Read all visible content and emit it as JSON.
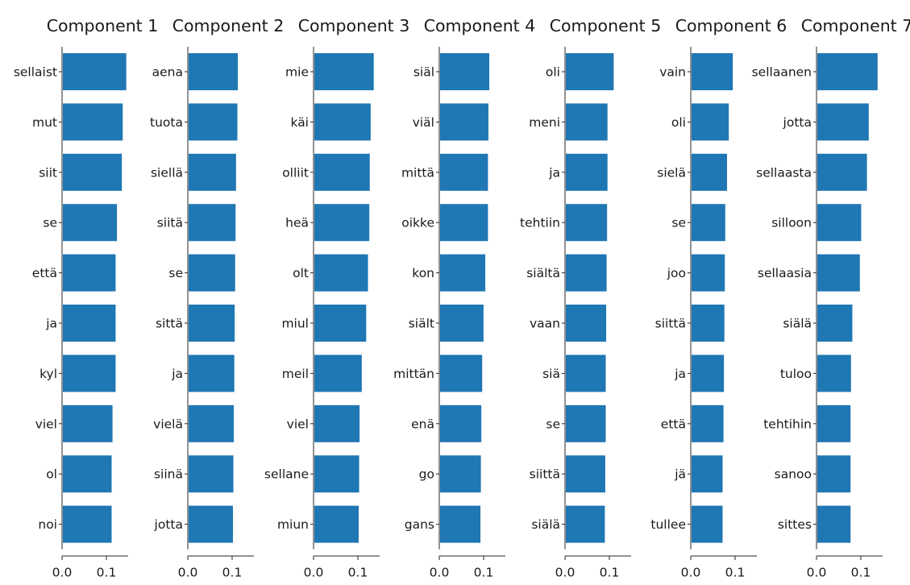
{
  "chart_data": [
    {
      "type": "bar",
      "orientation": "horizontal",
      "title": "Component 1",
      "categories": [
        "sellaist",
        "mut",
        "siit",
        "se",
        "että",
        "ja",
        "kyl",
        "viel",
        "ol",
        "noi"
      ],
      "values": [
        0.143,
        0.135,
        0.133,
        0.122,
        0.119,
        0.119,
        0.119,
        0.112,
        0.11,
        0.11
      ],
      "xlim": [
        0,
        0.15
      ],
      "xticks": [
        "0.0",
        "0.1"
      ],
      "grid": false
    },
    {
      "type": "bar",
      "orientation": "horizontal",
      "title": "Component 2",
      "categories": [
        "aena",
        "tuota",
        "siellä",
        "siitä",
        "se",
        "sittä",
        "ja",
        "vielä",
        "siinä",
        "jotta"
      ],
      "values": [
        0.111,
        0.11,
        0.107,
        0.106,
        0.105,
        0.104,
        0.103,
        0.102,
        0.101,
        0.1
      ],
      "xlim": [
        0,
        0.15
      ],
      "xticks": [
        "0.0",
        "0.1"
      ],
      "grid": false
    },
    {
      "type": "bar",
      "orientation": "horizontal",
      "title": "Component 3",
      "categories": [
        "mie",
        "käi",
        "olliit",
        "heä",
        "olt",
        "miul",
        "meil",
        "viel",
        "sellane",
        "miun"
      ],
      "values": [
        0.134,
        0.127,
        0.125,
        0.124,
        0.121,
        0.117,
        0.107,
        0.102,
        0.101,
        0.1
      ],
      "xlim": [
        0,
        0.15
      ],
      "xticks": [
        "0.0",
        "0.1"
      ],
      "grid": false
    },
    {
      "type": "bar",
      "orientation": "horizontal",
      "title": "Component 4",
      "categories": [
        "siäl",
        "viäl",
        "mittä",
        "oikke",
        "kon",
        "siält",
        "mittän",
        "enä",
        "go",
        "gans"
      ],
      "values": [
        0.111,
        0.109,
        0.108,
        0.108,
        0.102,
        0.098,
        0.095,
        0.093,
        0.092,
        0.091
      ],
      "xlim": [
        0,
        0.15
      ],
      "xticks": [
        "0.0",
        "0.1"
      ],
      "grid": false
    },
    {
      "type": "bar",
      "orientation": "horizontal",
      "title": "Component 5",
      "categories": [
        "oli",
        "meni",
        "ja",
        "tehtiin",
        "siältä",
        "vaan",
        "siä",
        "se",
        "siittä",
        "siälä"
      ],
      "values": [
        0.108,
        0.094,
        0.094,
        0.093,
        0.092,
        0.091,
        0.09,
        0.09,
        0.089,
        0.088
      ],
      "xlim": [
        0,
        0.15
      ],
      "xticks": [
        "0.0",
        "0.1"
      ],
      "grid": false
    },
    {
      "type": "bar",
      "orientation": "horizontal",
      "title": "Component 6",
      "categories": [
        "vain",
        "oli",
        "sielä",
        "se",
        "joo",
        "siittä",
        "ja",
        "että",
        "jä",
        "tullee"
      ],
      "values": [
        0.093,
        0.084,
        0.08,
        0.076,
        0.075,
        0.074,
        0.073,
        0.072,
        0.07,
        0.07
      ],
      "xlim": [
        0,
        0.15
      ],
      "xticks": [
        "0.0",
        "0.1"
      ],
      "grid": false
    },
    {
      "type": "bar",
      "orientation": "horizontal",
      "title": "Component 7",
      "categories": [
        "sellaanen",
        "jotta",
        "sellaasta",
        "silloon",
        "sellaasia",
        "siälä",
        "tuloo",
        "tehtihin",
        "sanoo",
        "sittes"
      ],
      "values": [
        0.136,
        0.116,
        0.112,
        0.099,
        0.096,
        0.079,
        0.076,
        0.075,
        0.075,
        0.075
      ],
      "xlim": [
        0,
        0.15
      ],
      "xticks": [
        "0.0",
        "0.1"
      ],
      "grid": false
    }
  ],
  "style": {
    "bar_color": "#1f77b4",
    "axis_color": "#262626",
    "text_color": "#1a1a1a",
    "background": "#ffffff"
  }
}
